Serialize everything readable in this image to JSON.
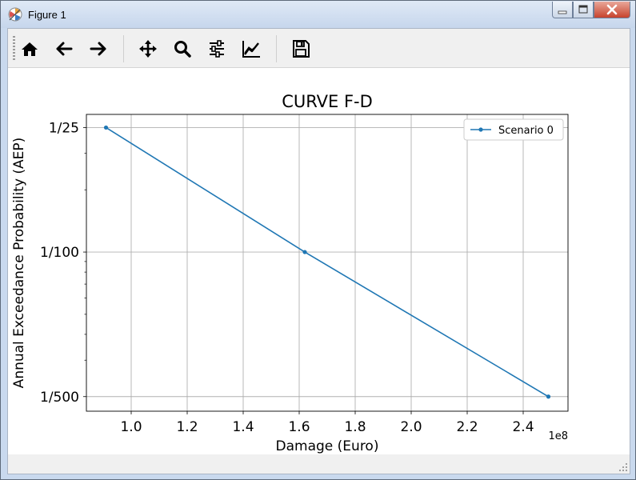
{
  "window": {
    "title": "Figure 1",
    "icons": {
      "app": "matplotlib-icon",
      "minimize": "minimize-icon",
      "maximize": "maximize-icon",
      "close": "close-icon"
    }
  },
  "toolbar": {
    "buttons": [
      {
        "name": "home-button",
        "icon": "home-icon"
      },
      {
        "name": "back-button",
        "icon": "arrow-left-icon"
      },
      {
        "name": "forward-button",
        "icon": "arrow-right-icon"
      },
      {
        "name": "pan-button",
        "icon": "move-icon"
      },
      {
        "name": "zoom-button",
        "icon": "magnifier-icon"
      },
      {
        "name": "subplots-button",
        "icon": "sliders-icon"
      },
      {
        "name": "edit-axes-button",
        "icon": "line-chart-icon"
      },
      {
        "name": "save-button",
        "icon": "floppy-disk-icon"
      }
    ]
  },
  "chart_data": {
    "type": "line",
    "title": "CURVE F-D",
    "xlabel": "Damage (Euro)",
    "ylabel": "Annual Exceedance Probability (AEP)",
    "x_offset_label": "1e8",
    "xlim": [
      0.84,
      2.56
    ],
    "yscale": "log",
    "ylim": [
      0.0017,
      0.0463
    ],
    "xticks": [
      1.0,
      1.2,
      1.4,
      1.6,
      1.8,
      2.0,
      2.2,
      2.4
    ],
    "xtick_labels": [
      "1.0",
      "1.2",
      "1.4",
      "1.6",
      "1.8",
      "2.0",
      "2.2",
      "2.4"
    ],
    "yticks": [
      0.04,
      0.01,
      0.002
    ],
    "ytick_labels": [
      "1/25",
      "1/100",
      "1/500"
    ],
    "grid": true,
    "legend_position": "top-right",
    "series": [
      {
        "name": "Scenario 0",
        "color": "#1f77b4",
        "x": [
          0.91,
          1.62,
          2.49
        ],
        "y": [
          0.04,
          0.01,
          0.002
        ]
      }
    ]
  }
}
